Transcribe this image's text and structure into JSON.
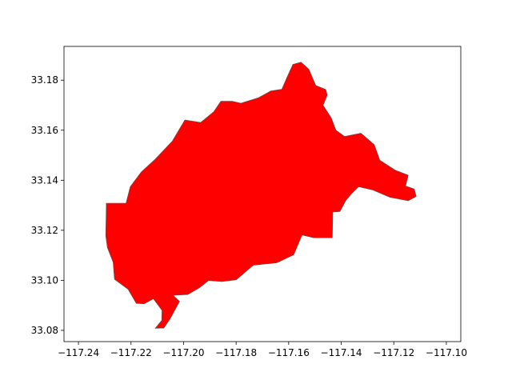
{
  "chart_data": {
    "type": "map",
    "title": "",
    "xlabel": "",
    "ylabel": "",
    "xlim": [
      -117.2455,
      -117.0945
    ],
    "ylim": [
      33.0755,
      33.1935
    ],
    "grid": false,
    "fill_color": "#ff0000",
    "edge_color": "#555555",
    "x_ticks": [
      -117.24,
      -117.22,
      -117.2,
      -117.18,
      -117.16,
      -117.14,
      -117.12,
      -117.1
    ],
    "x_tick_labels": [
      "−117.24",
      "−117.22",
      "−117.20",
      "−117.18",
      "−117.16",
      "−117.14",
      "−117.12",
      "−117.10"
    ],
    "y_ticks": [
      33.08,
      33.1,
      33.12,
      33.14,
      33.16,
      33.18
    ],
    "y_tick_labels": [
      "33.08",
      "33.10",
      "33.12",
      "33.14",
      "33.16",
      "33.18"
    ],
    "polygon": [
      [
        -117.2294,
        33.1308
      ],
      [
        -117.2219,
        33.1308
      ],
      [
        -117.2203,
        33.1374
      ],
      [
        -117.2161,
        33.1433
      ],
      [
        -117.2108,
        33.1484
      ],
      [
        -117.2043,
        33.1556
      ],
      [
        -117.1995,
        33.1641
      ],
      [
        -117.1935,
        33.1631
      ],
      [
        -117.1885,
        33.1674
      ],
      [
        -117.1858,
        33.1716
      ],
      [
        -117.1815,
        33.1716
      ],
      [
        -117.1782,
        33.1708
      ],
      [
        -117.1715,
        33.173
      ],
      [
        -117.1668,
        33.1757
      ],
      [
        -117.1626,
        33.1764
      ],
      [
        -117.1606,
        33.1813
      ],
      [
        -117.1584,
        33.1863
      ],
      [
        -117.1553,
        33.1872
      ],
      [
        -117.1523,
        33.1844
      ],
      [
        -117.1497,
        33.1779
      ],
      [
        -117.1459,
        33.1763
      ],
      [
        -117.1453,
        33.1741
      ],
      [
        -117.1469,
        33.17
      ],
      [
        -117.1438,
        33.1649
      ],
      [
        -117.142,
        33.16
      ],
      [
        -117.1387,
        33.1575
      ],
      [
        -117.1325,
        33.1588
      ],
      [
        -117.1274,
        33.1542
      ],
      [
        -117.1253,
        33.148
      ],
      [
        -117.1194,
        33.144
      ],
      [
        -117.1145,
        33.142
      ],
      [
        -117.1155,
        33.1377
      ],
      [
        -117.1122,
        33.1365
      ],
      [
        -117.1115,
        33.1335
      ],
      [
        -117.1145,
        33.1318
      ],
      [
        -117.1215,
        33.1332
      ],
      [
        -117.128,
        33.1361
      ],
      [
        -117.1334,
        33.1374
      ],
      [
        -117.1362,
        33.1345
      ],
      [
        -117.1383,
        33.1318
      ],
      [
        -117.1405,
        33.1275
      ],
      [
        -117.1432,
        33.1273
      ],
      [
        -117.1434,
        33.117
      ],
      [
        -117.1505,
        33.117
      ],
      [
        -117.1549,
        33.1181
      ],
      [
        -117.1581,
        33.1102
      ],
      [
        -117.1645,
        33.107
      ],
      [
        -117.1735,
        33.106
      ],
      [
        -117.18,
        33.1002
      ],
      [
        -117.1855,
        33.0995
      ],
      [
        -117.1905,
        33.0999
      ],
      [
        -117.194,
        33.097
      ],
      [
        -117.1984,
        33.0943
      ],
      [
        -117.204,
        33.094
      ],
      [
        -117.2015,
        33.0916
      ],
      [
        -117.205,
        33.0848
      ],
      [
        -117.2075,
        33.0809
      ],
      [
        -117.2108,
        33.0808
      ],
      [
        -117.2083,
        33.084
      ],
      [
        -117.2082,
        33.088
      ],
      [
        -117.2115,
        33.0926
      ],
      [
        -117.215,
        33.0906
      ],
      [
        -117.218,
        33.0908
      ],
      [
        -117.2211,
        33.0964
      ],
      [
        -117.2263,
        33.1004
      ],
      [
        -117.2268,
        33.1072
      ],
      [
        -117.229,
        33.1131
      ],
      [
        -117.2296,
        33.1178
      ],
      [
        -117.2294,
        33.1308
      ]
    ]
  }
}
